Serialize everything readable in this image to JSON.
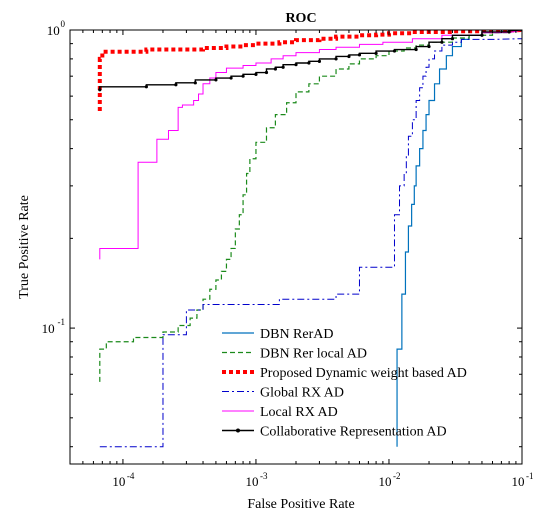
{
  "chart_data": {
    "type": "line",
    "title": "ROC",
    "xlabel": "False Positive Rate",
    "ylabel": "True Positive Rate",
    "xscale": "log",
    "yscale": "log",
    "xlim": [
      4e-05,
      0.1
    ],
    "ylim": [
      0.035,
      1
    ],
    "grid": false,
    "legend_position": "bottom-center",
    "x_ticks": [
      {
        "base": "10",
        "exp": "-4",
        "value": 0.0001
      },
      {
        "base": "10",
        "exp": "-3",
        "value": 0.001
      },
      {
        "base": "10",
        "exp": "-2",
        "value": 0.01
      },
      {
        "base": "10",
        "exp": "-1",
        "value": 0.1
      }
    ],
    "y_ticks": [
      {
        "base": "10",
        "exp": "-1",
        "value": 0.1
      },
      {
        "base": "10",
        "exp": "0",
        "value": 1
      }
    ],
    "series": [
      {
        "name": "DBN RerAD",
        "color": "#0072BD",
        "style": "solid",
        "width": 1.2,
        "points": [
          [
            0.0115,
            0.04
          ],
          [
            0.0115,
            0.085
          ],
          [
            0.0125,
            0.085
          ],
          [
            0.0125,
            0.13
          ],
          [
            0.0133,
            0.13
          ],
          [
            0.0133,
            0.18
          ],
          [
            0.014,
            0.18
          ],
          [
            0.014,
            0.22
          ],
          [
            0.0148,
            0.22
          ],
          [
            0.0148,
            0.26
          ],
          [
            0.0155,
            0.26
          ],
          [
            0.0155,
            0.3
          ],
          [
            0.016,
            0.3
          ],
          [
            0.016,
            0.35
          ],
          [
            0.017,
            0.35
          ],
          [
            0.017,
            0.4
          ],
          [
            0.018,
            0.4
          ],
          [
            0.018,
            0.46
          ],
          [
            0.019,
            0.46
          ],
          [
            0.019,
            0.52
          ],
          [
            0.02,
            0.52
          ],
          [
            0.02,
            0.58
          ],
          [
            0.022,
            0.58
          ],
          [
            0.022,
            0.66
          ],
          [
            0.024,
            0.66
          ],
          [
            0.024,
            0.74
          ],
          [
            0.027,
            0.74
          ],
          [
            0.027,
            0.82
          ],
          [
            0.03,
            0.82
          ],
          [
            0.03,
            0.88
          ],
          [
            0.035,
            0.88
          ],
          [
            0.035,
            0.93
          ],
          [
            0.04,
            0.93
          ],
          [
            0.04,
            0.96
          ],
          [
            0.05,
            0.96
          ],
          [
            0.05,
            0.98
          ],
          [
            0.07,
            0.98
          ],
          [
            0.07,
            0.99
          ],
          [
            0.09,
            0.99
          ],
          [
            0.1,
            1.0
          ]
        ]
      },
      {
        "name": "DBN Rer local AD",
        "color": "#1B8A1B",
        "style": "dashed",
        "width": 1.2,
        "points": [
          [
            6.7e-05,
            0.066
          ],
          [
            6.7e-05,
            0.085
          ],
          [
            7.5e-05,
            0.085
          ],
          [
            7.5e-05,
            0.09
          ],
          [
            0.00012,
            0.09
          ],
          [
            0.00012,
            0.093
          ],
          [
            0.0002,
            0.093
          ],
          [
            0.0002,
            0.097
          ],
          [
            0.00026,
            0.097
          ],
          [
            0.00026,
            0.102
          ],
          [
            0.00032,
            0.102
          ],
          [
            0.00032,
            0.108
          ],
          [
            0.00036,
            0.108
          ],
          [
            0.00036,
            0.115
          ],
          [
            0.0004,
            0.115
          ],
          [
            0.0004,
            0.125
          ],
          [
            0.00045,
            0.125
          ],
          [
            0.00045,
            0.135
          ],
          [
            0.0005,
            0.135
          ],
          [
            0.0005,
            0.145
          ],
          [
            0.00055,
            0.145
          ],
          [
            0.00055,
            0.155
          ],
          [
            0.0006,
            0.155
          ],
          [
            0.0006,
            0.17
          ],
          [
            0.00065,
            0.17
          ],
          [
            0.00065,
            0.185
          ],
          [
            0.0007,
            0.185
          ],
          [
            0.0007,
            0.215
          ],
          [
            0.00075,
            0.215
          ],
          [
            0.00075,
            0.24
          ],
          [
            0.0008,
            0.24
          ],
          [
            0.0008,
            0.28
          ],
          [
            0.00085,
            0.28
          ],
          [
            0.00085,
            0.33
          ],
          [
            0.0009,
            0.33
          ],
          [
            0.0009,
            0.37
          ],
          [
            0.001,
            0.37
          ],
          [
            0.001,
            0.42
          ],
          [
            0.0012,
            0.42
          ],
          [
            0.0012,
            0.47
          ],
          [
            0.0014,
            0.47
          ],
          [
            0.0014,
            0.52
          ],
          [
            0.0017,
            0.52
          ],
          [
            0.0017,
            0.57
          ],
          [
            0.002,
            0.57
          ],
          [
            0.002,
            0.62
          ],
          [
            0.0025,
            0.62
          ],
          [
            0.0025,
            0.66
          ],
          [
            0.003,
            0.66
          ],
          [
            0.003,
            0.7
          ],
          [
            0.004,
            0.7
          ],
          [
            0.004,
            0.74
          ],
          [
            0.005,
            0.74
          ],
          [
            0.005,
            0.77
          ],
          [
            0.006,
            0.77
          ],
          [
            0.006,
            0.8
          ],
          [
            0.008,
            0.8
          ],
          [
            0.008,
            0.82
          ],
          [
            0.01,
            0.82
          ],
          [
            0.01,
            0.85
          ],
          [
            0.013,
            0.85
          ],
          [
            0.013,
            0.87
          ],
          [
            0.016,
            0.87
          ],
          [
            0.016,
            0.89
          ],
          [
            0.02,
            0.89
          ],
          [
            0.02,
            0.91
          ],
          [
            0.03,
            0.91
          ],
          [
            0.03,
            0.94
          ],
          [
            0.04,
            0.94
          ],
          [
            0.04,
            0.96
          ],
          [
            0.06,
            0.96
          ],
          [
            0.06,
            0.98
          ],
          [
            0.08,
            0.98
          ],
          [
            0.1,
            1.0
          ]
        ]
      },
      {
        "name": "Proposed Dynamic weight based AD",
        "color": "#FF0000",
        "style": "dotted",
        "width": 4,
        "points": [
          [
            6.7e-05,
            0.535
          ],
          [
            6.7e-05,
            0.8
          ],
          [
            7e-05,
            0.8
          ],
          [
            7e-05,
            0.845
          ],
          [
            0.00015,
            0.845
          ],
          [
            0.00015,
            0.86
          ],
          [
            0.0004,
            0.86
          ],
          [
            0.0004,
            0.87
          ],
          [
            0.0006,
            0.87
          ],
          [
            0.0006,
            0.88
          ],
          [
            0.0008,
            0.88
          ],
          [
            0.0008,
            0.89
          ],
          [
            0.001,
            0.89
          ],
          [
            0.001,
            0.9
          ],
          [
            0.0015,
            0.9
          ],
          [
            0.0015,
            0.91
          ],
          [
            0.002,
            0.91
          ],
          [
            0.002,
            0.925
          ],
          [
            0.003,
            0.925
          ],
          [
            0.003,
            0.935
          ],
          [
            0.004,
            0.935
          ],
          [
            0.004,
            0.95
          ],
          [
            0.006,
            0.95
          ],
          [
            0.006,
            0.96
          ],
          [
            0.008,
            0.96
          ],
          [
            0.008,
            0.965
          ],
          [
            0.01,
            0.965
          ],
          [
            0.01,
            0.975
          ],
          [
            0.015,
            0.975
          ],
          [
            0.015,
            0.985
          ],
          [
            0.03,
            0.985
          ],
          [
            0.03,
            0.99
          ],
          [
            0.06,
            0.99
          ],
          [
            0.1,
            1.0
          ]
        ]
      },
      {
        "name": "Global RX AD",
        "color": "#0000CC",
        "style": "dashdot",
        "width": 1,
        "points": [
          [
            6.7e-05,
            0.04
          ],
          [
            0.0002,
            0.04
          ],
          [
            0.0002,
            0.095
          ],
          [
            0.0003,
            0.095
          ],
          [
            0.0003,
            0.115
          ],
          [
            0.0004,
            0.115
          ],
          [
            0.0004,
            0.12
          ],
          [
            0.0015,
            0.12
          ],
          [
            0.0015,
            0.125
          ],
          [
            0.004,
            0.125
          ],
          [
            0.004,
            0.13
          ],
          [
            0.006,
            0.13
          ],
          [
            0.006,
            0.16
          ],
          [
            0.011,
            0.16
          ],
          [
            0.011,
            0.24
          ],
          [
            0.012,
            0.24
          ],
          [
            0.012,
            0.3
          ],
          [
            0.013,
            0.3
          ],
          [
            0.013,
            0.33
          ],
          [
            0.0135,
            0.33
          ],
          [
            0.0135,
            0.38
          ],
          [
            0.014,
            0.38
          ],
          [
            0.014,
            0.44
          ],
          [
            0.015,
            0.44
          ],
          [
            0.015,
            0.5
          ],
          [
            0.016,
            0.5
          ],
          [
            0.016,
            0.58
          ],
          [
            0.017,
            0.58
          ],
          [
            0.017,
            0.64
          ],
          [
            0.018,
            0.64
          ],
          [
            0.018,
            0.7
          ],
          [
            0.019,
            0.7
          ],
          [
            0.019,
            0.75
          ],
          [
            0.02,
            0.75
          ],
          [
            0.02,
            0.8
          ],
          [
            0.022,
            0.8
          ],
          [
            0.022,
            0.85
          ],
          [
            0.025,
            0.85
          ],
          [
            0.025,
            0.89
          ],
          [
            0.03,
            0.89
          ],
          [
            0.03,
            0.91
          ],
          [
            0.035,
            0.91
          ],
          [
            0.035,
            0.93
          ],
          [
            0.06,
            0.93
          ],
          [
            0.1,
            0.935
          ]
        ]
      },
      {
        "name": "Local RX AD",
        "color": "#FF00FF",
        "style": "solid",
        "width": 1,
        "points": [
          [
            6.7e-05,
            0.17
          ],
          [
            6.7e-05,
            0.185
          ],
          [
            0.00013,
            0.185
          ],
          [
            0.00013,
            0.36
          ],
          [
            0.00018,
            0.36
          ],
          [
            0.00018,
            0.43
          ],
          [
            0.00022,
            0.43
          ],
          [
            0.00022,
            0.46
          ],
          [
            0.00026,
            0.46
          ],
          [
            0.00026,
            0.55
          ],
          [
            0.00028,
            0.55
          ],
          [
            0.00028,
            0.56
          ],
          [
            0.00034,
            0.56
          ],
          [
            0.00034,
            0.58
          ],
          [
            0.00037,
            0.58
          ],
          [
            0.00037,
            0.61
          ],
          [
            0.0004,
            0.61
          ],
          [
            0.0004,
            0.66
          ],
          [
            0.00045,
            0.66
          ],
          [
            0.00045,
            0.69
          ],
          [
            0.0005,
            0.69
          ],
          [
            0.0005,
            0.72
          ],
          [
            0.0006,
            0.72
          ],
          [
            0.0006,
            0.745
          ],
          [
            0.0008,
            0.745
          ],
          [
            0.0008,
            0.76
          ],
          [
            0.001,
            0.76
          ],
          [
            0.001,
            0.775
          ],
          [
            0.0013,
            0.775
          ],
          [
            0.0013,
            0.8
          ],
          [
            0.0016,
            0.8
          ],
          [
            0.0016,
            0.82
          ],
          [
            0.002,
            0.82
          ],
          [
            0.002,
            0.84
          ],
          [
            0.003,
            0.84
          ],
          [
            0.003,
            0.86
          ],
          [
            0.004,
            0.86
          ],
          [
            0.004,
            0.875
          ],
          [
            0.006,
            0.875
          ],
          [
            0.006,
            0.895
          ],
          [
            0.009,
            0.895
          ],
          [
            0.009,
            0.91
          ],
          [
            0.015,
            0.91
          ],
          [
            0.015,
            0.935
          ],
          [
            0.025,
            0.935
          ],
          [
            0.025,
            0.96
          ],
          [
            0.05,
            0.96
          ],
          [
            0.05,
            0.98
          ],
          [
            0.08,
            0.98
          ],
          [
            0.1,
            1.0
          ]
        ]
      },
      {
        "name": "Collaborative Representation AD",
        "color": "#000000",
        "style": "solid-marker",
        "width": 1.4,
        "points": [
          [
            6.7e-05,
            0.63
          ],
          [
            6.7e-05,
            0.645
          ],
          [
            0.00015,
            0.645
          ],
          [
            0.00015,
            0.655
          ],
          [
            0.00025,
            0.655
          ],
          [
            0.00025,
            0.665
          ],
          [
            0.00035,
            0.665
          ],
          [
            0.00035,
            0.68
          ],
          [
            0.0005,
            0.68
          ],
          [
            0.0005,
            0.69
          ],
          [
            0.00065,
            0.69
          ],
          [
            0.00065,
            0.7
          ],
          [
            0.0008,
            0.7
          ],
          [
            0.0008,
            0.71
          ],
          [
            0.001,
            0.71
          ],
          [
            0.001,
            0.72
          ],
          [
            0.0012,
            0.72
          ],
          [
            0.0012,
            0.74
          ],
          [
            0.0014,
            0.74
          ],
          [
            0.0014,
            0.75
          ],
          [
            0.0016,
            0.75
          ],
          [
            0.0016,
            0.765
          ],
          [
            0.002,
            0.765
          ],
          [
            0.002,
            0.775
          ],
          [
            0.0025,
            0.775
          ],
          [
            0.0025,
            0.785
          ],
          [
            0.003,
            0.785
          ],
          [
            0.003,
            0.8
          ],
          [
            0.004,
            0.8
          ],
          [
            0.004,
            0.815
          ],
          [
            0.005,
            0.815
          ],
          [
            0.005,
            0.825
          ],
          [
            0.006,
            0.825
          ],
          [
            0.006,
            0.835
          ],
          [
            0.008,
            0.835
          ],
          [
            0.008,
            0.85
          ],
          [
            0.011,
            0.85
          ],
          [
            0.011,
            0.86
          ],
          [
            0.016,
            0.86
          ],
          [
            0.016,
            0.88
          ],
          [
            0.02,
            0.88
          ],
          [
            0.02,
            0.91
          ],
          [
            0.025,
            0.91
          ],
          [
            0.025,
            0.935
          ],
          [
            0.03,
            0.935
          ],
          [
            0.03,
            0.96
          ],
          [
            0.05,
            0.96
          ],
          [
            0.05,
            0.985
          ],
          [
            0.08,
            0.985
          ],
          [
            0.08,
            0.995
          ],
          [
            0.1,
            1.0
          ]
        ]
      }
    ]
  }
}
